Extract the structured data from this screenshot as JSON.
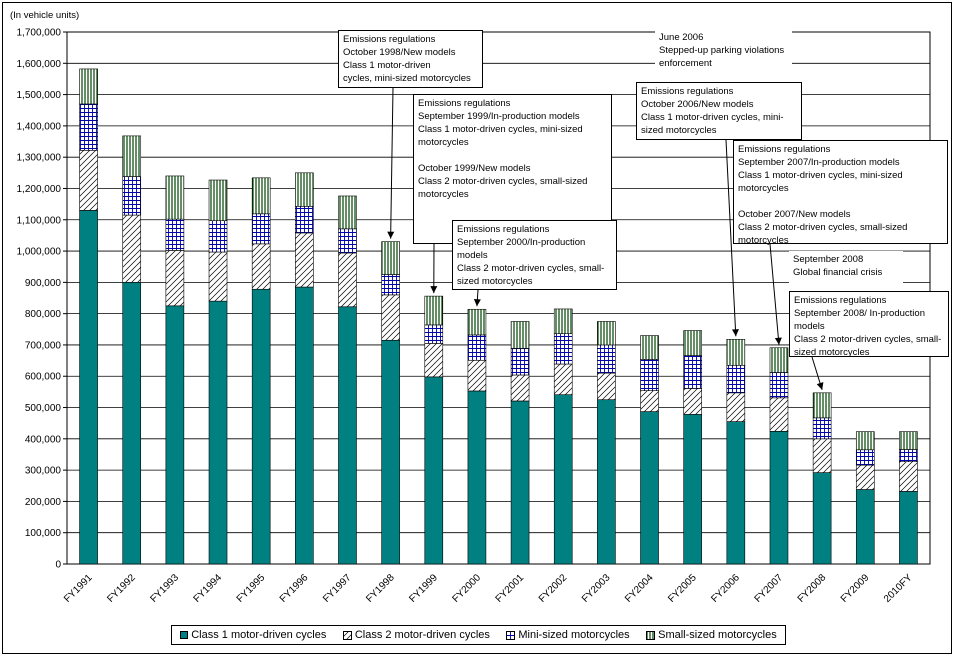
{
  "chart_data": {
    "type": "bar",
    "stacked": true,
    "unit_label": "(In vehicle units)",
    "categories": [
      "FY1991",
      "FY1992",
      "FY1993",
      "FY1994",
      "FY1995",
      "FY1996",
      "FY1997",
      "FY1998",
      "FY1999",
      "FY2000",
      "FY2001",
      "FY2002",
      "FY2003",
      "FY2004",
      "FY2005",
      "FY2006",
      "FY2007",
      "FY2008",
      "FY2009",
      "2010FY"
    ],
    "ylim": [
      0,
      1700000
    ],
    "yticks": [
      "0",
      "100,000",
      "200,000",
      "300,000",
      "400,000",
      "500,000",
      "600,000",
      "700,000",
      "800,000",
      "900,000",
      "1,000,000",
      "1,100,000",
      "1,200,000",
      "1,300,000",
      "1,400,000",
      "1,500,000",
      "1,600,000",
      "1,700,000"
    ],
    "grid": true,
    "series": [
      {
        "name": "Class 1 motor-driven cycles",
        "pattern": "solid",
        "color": "#008080",
        "values": [
          1130000,
          900000,
          825000,
          840000,
          878000,
          885000,
          822000,
          715000,
          598000,
          553000,
          521000,
          541000,
          525000,
          487000,
          478000,
          455000,
          424000,
          292000,
          238000,
          232000
        ]
      },
      {
        "name": "Class 2 motor-driven cycles",
        "pattern": "diagonal",
        "values": [
          192000,
          215000,
          177000,
          157000,
          145000,
          173000,
          172000,
          145000,
          107000,
          98000,
          83000,
          98000,
          85000,
          67000,
          83000,
          92000,
          107000,
          108000,
          78000,
          95000
        ]
      },
      {
        "name": "Mini-sized motorcycles",
        "pattern": "grid",
        "values": [
          148000,
          123000,
          100000,
          100000,
          96000,
          85000,
          77000,
          65000,
          59000,
          81000,
          85000,
          97000,
          90000,
          100000,
          105000,
          88000,
          81000,
          67000,
          49000,
          39000
        ]
      },
      {
        "name": "Small-sized motorcycles",
        "pattern": "vertical",
        "values": [
          112000,
          130000,
          138000,
          130000,
          115000,
          107000,
          105000,
          105000,
          92000,
          82000,
          86000,
          79000,
          75000,
          76000,
          80000,
          83000,
          79000,
          80000,
          58000,
          57000
        ]
      }
    ],
    "legend_position": "bottom"
  },
  "annotations": [
    {
      "id": "ann-1998",
      "text": "Emissions regulations\nOctober 1998/New models\nClass 1 motor-driven\ncycles, mini-sized motorcycles",
      "target_index": 7
    },
    {
      "id": "ann-1999",
      "text": "Emissions regulations\nSeptember 1999/In-production models\nClass 1 motor-driven cycles, mini-sized\nmotorcycles\n\nOctober 1999/New models\nClass 2 motor-driven cycles, small-sized\nmotorcycles",
      "target_index": 8
    },
    {
      "id": "ann-2000",
      "text": "Emissions regulations\nSeptember 2000/In-production\nmodels\nClass 2 motor-driven cycles, small-\nsized motorcycles",
      "target_index": 9
    },
    {
      "id": "ann-2006-parking",
      "text": "June 2006\nStepped-up parking violations\nenforcement",
      "target_index": null
    },
    {
      "id": "ann-2006",
      "text": "Emissions regulations\nOctober 2006/New models\nClass 1 motor-driven cycles, mini-\nsized motorcycles",
      "target_index": 15
    },
    {
      "id": "ann-2007",
      "text": "Emissions regulations\nSeptember 2007/In-production models\nClass 1 motor-driven cycles, mini-sized\nmotorcycles\n\nOctober 2007/New models\nClass 2 motor-driven cycles, small-sized\nmotorcycles",
      "target_index": 16
    },
    {
      "id": "ann-2008-crisis",
      "text": "September 2008\nGlobal financial crisis",
      "target_index": null
    },
    {
      "id": "ann-2008",
      "text": "Emissions regulations\nSeptember 2008/ In-production\nmodels\nClass 2 motor-driven cycles, small-\nsized motorcycles",
      "target_index": 17
    }
  ]
}
